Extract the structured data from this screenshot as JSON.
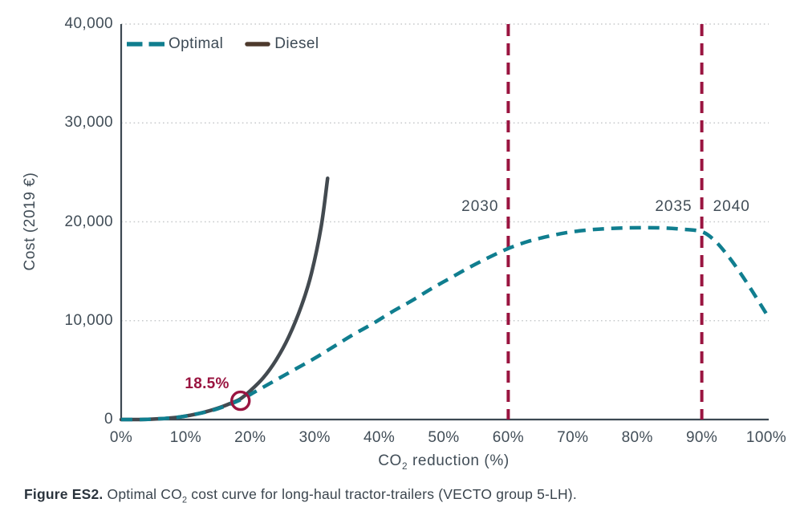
{
  "figure_caption": {
    "bold": "Figure ES2.",
    "pre": " Optimal CO",
    "sub": "2",
    "post": " cost curve for long-haul tractor-trailers (VECTO group 5-LH)."
  },
  "chart_data": {
    "type": "line",
    "title": "",
    "xlabel": {
      "pre": "CO",
      "sub": "2",
      "post": " reduction (%)"
    },
    "ylabel": "Cost (2019 €)",
    "xlim": [
      0,
      100
    ],
    "ylim": [
      0,
      40000
    ],
    "grid": {
      "horizontal": true,
      "style": "dotted",
      "color": "#c7cacc"
    },
    "axis_color": "#3c4852",
    "legend_position": "top-left",
    "x_ticks": [
      {
        "value": 0,
        "label": "0%"
      },
      {
        "value": 10,
        "label": "10%"
      },
      {
        "value": 20,
        "label": "20%"
      },
      {
        "value": 30,
        "label": "30%"
      },
      {
        "value": 40,
        "label": "40%"
      },
      {
        "value": 50,
        "label": "50%"
      },
      {
        "value": 60,
        "label": "60%"
      },
      {
        "value": 70,
        "label": "70%"
      },
      {
        "value": 80,
        "label": "80%"
      },
      {
        "value": 90,
        "label": "90%"
      },
      {
        "value": 100,
        "label": "100%"
      }
    ],
    "y_ticks": [
      {
        "value": 0,
        "label": "0"
      },
      {
        "value": 10000,
        "label": "10,000"
      },
      {
        "value": 20000,
        "label": "20,000"
      },
      {
        "value": 30000,
        "label": "30,000"
      },
      {
        "value": 40000,
        "label": "40,000"
      }
    ],
    "legend": {
      "items": [
        {
          "label": "Optimal",
          "swatch": "dashed",
          "color": "#107e8f"
        },
        {
          "label": "Diesel",
          "swatch": "solid",
          "color": "#4e3a2d"
        }
      ]
    },
    "series": [
      {
        "name": "Diesel",
        "style": "solid",
        "color": "#434a50",
        "points": [
          [
            0,
            0
          ],
          [
            3,
            0
          ],
          [
            6,
            80
          ],
          [
            9,
            250
          ],
          [
            12,
            600
          ],
          [
            15,
            1150
          ],
          [
            17,
            1650
          ],
          [
            18.5,
            2100
          ],
          [
            20,
            2900
          ],
          [
            22,
            4200
          ],
          [
            24,
            6000
          ],
          [
            26,
            8400
          ],
          [
            28,
            11600
          ],
          [
            29.5,
            14800
          ],
          [
            31,
            19500
          ],
          [
            32,
            24400
          ]
        ]
      },
      {
        "name": "Optimal",
        "style": "dashed",
        "color": "#107e8f",
        "points": [
          [
            0,
            0
          ],
          [
            3,
            0
          ],
          [
            6,
            80
          ],
          [
            9,
            250
          ],
          [
            12,
            600
          ],
          [
            15,
            1100
          ],
          [
            18.5,
            2000
          ],
          [
            21,
            2900
          ],
          [
            24,
            4000
          ],
          [
            27,
            5100
          ],
          [
            30,
            6200
          ],
          [
            33,
            7400
          ],
          [
            36,
            8600
          ],
          [
            39,
            9700
          ],
          [
            42,
            10900
          ],
          [
            45,
            12000
          ],
          [
            48,
            13200
          ],
          [
            51,
            14300
          ],
          [
            54,
            15400
          ],
          [
            57,
            16400
          ],
          [
            60,
            17300
          ],
          [
            63,
            18000
          ],
          [
            66,
            18500
          ],
          [
            69,
            18900
          ],
          [
            72,
            19150
          ],
          [
            75,
            19300
          ],
          [
            78,
            19380
          ],
          [
            81,
            19400
          ],
          [
            84,
            19380
          ],
          [
            87,
            19250
          ],
          [
            90,
            19000
          ],
          [
            92,
            18100
          ],
          [
            94,
            16600
          ],
          [
            96,
            14800
          ],
          [
            98,
            12800
          ],
          [
            100,
            10700
          ]
        ]
      }
    ],
    "vlines": [
      {
        "x": 60,
        "color": "#9a1440",
        "labels": [
          {
            "text": "2030",
            "side": "left"
          }
        ]
      },
      {
        "x": 90,
        "color": "#9a1440",
        "labels": [
          {
            "text": "2035",
            "side": "left"
          },
          {
            "text": "2040",
            "side": "right"
          }
        ]
      }
    ],
    "annotation": {
      "text": "18.5%",
      "x": 18.5,
      "y": 1900,
      "marker": "open-circle",
      "color": "#9a1440"
    }
  }
}
